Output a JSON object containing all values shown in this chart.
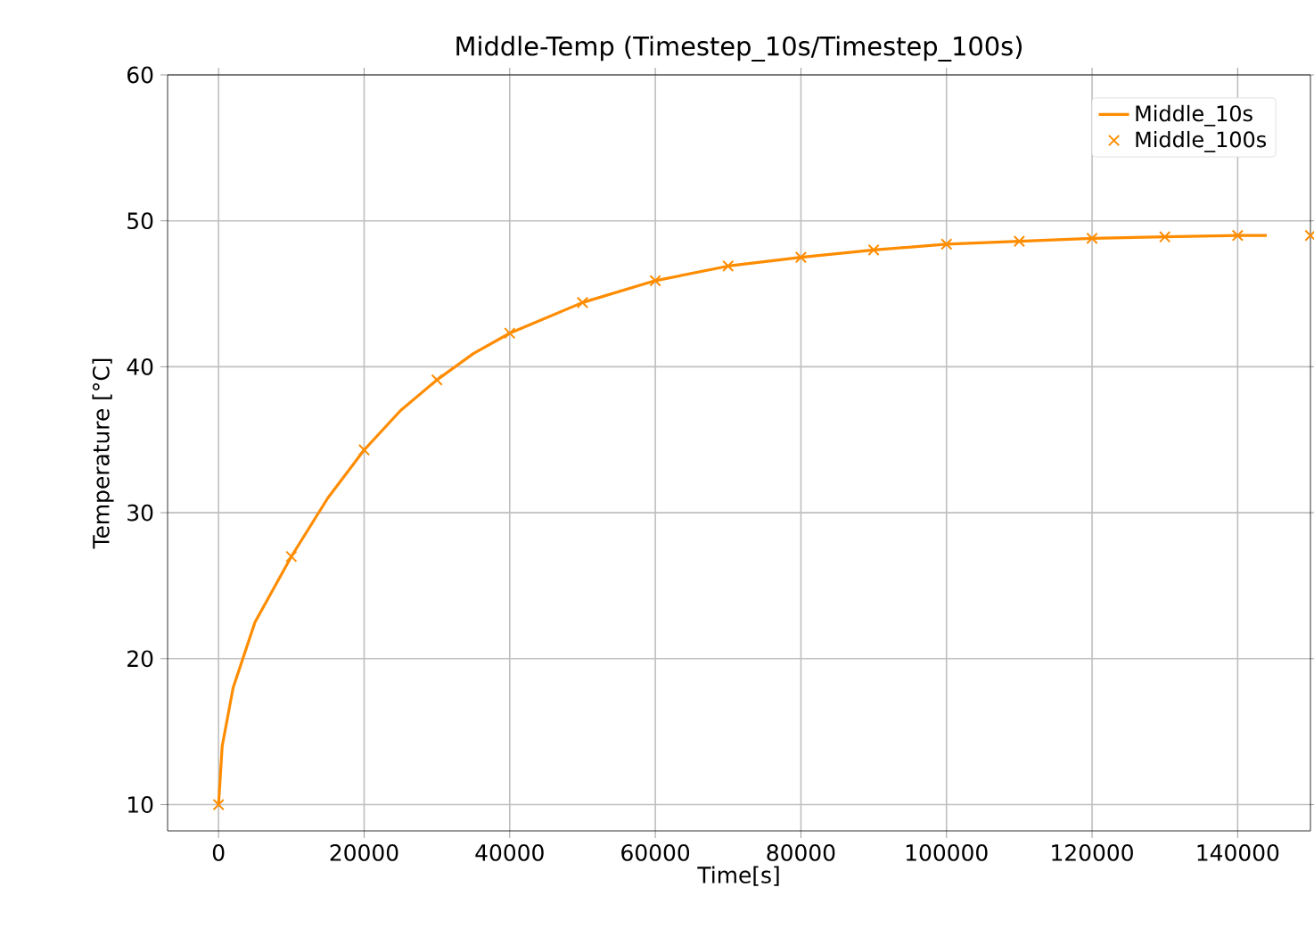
{
  "chart_data": {
    "type": "line",
    "title": "Middle-Temp (Timestep_10s/Timestep_100s)",
    "xlabel": "Time[s]",
    "ylabel": "Temperature [°C]",
    "xlim": [
      -7000,
      150000
    ],
    "ylim": [
      8.2,
      60
    ],
    "xticks": [
      0,
      20000,
      40000,
      60000,
      80000,
      100000,
      120000,
      140000
    ],
    "yticks": [
      10,
      20,
      30,
      40,
      50,
      60
    ],
    "grid": true,
    "legend": "top right",
    "series": [
      {
        "name": "Middle_10s",
        "marker": "none",
        "line_style": "solid",
        "color": "#ff8c00",
        "x": [
          0,
          500,
          2000,
          5000,
          10000,
          15000,
          20000,
          25000,
          30000,
          35000,
          40000,
          50000,
          60000,
          70000,
          80000,
          90000,
          100000,
          110000,
          120000,
          130000,
          140000,
          144000
        ],
        "values": [
          10,
          14,
          18,
          22.5,
          27,
          31,
          34.3,
          37,
          39.1,
          40.9,
          42.3,
          44.4,
          45.9,
          46.9,
          47.5,
          48.0,
          48.4,
          48.6,
          48.8,
          48.9,
          49.0,
          49.0
        ]
      },
      {
        "name": "Middle_100s",
        "type": "scatter",
        "marker": "cross",
        "color": "#ff8c00",
        "x": [
          0,
          10000,
          20000,
          30000,
          40000,
          50000,
          60000,
          70000,
          80000,
          90000,
          100000,
          110000,
          120000,
          130000,
          140000,
          150000
        ],
        "values": [
          10,
          27,
          34.3,
          39.1,
          42.3,
          44.4,
          45.9,
          46.9,
          47.5,
          48.0,
          48.4,
          48.6,
          48.8,
          48.9,
          49.0,
          49.0
        ]
      }
    ]
  }
}
